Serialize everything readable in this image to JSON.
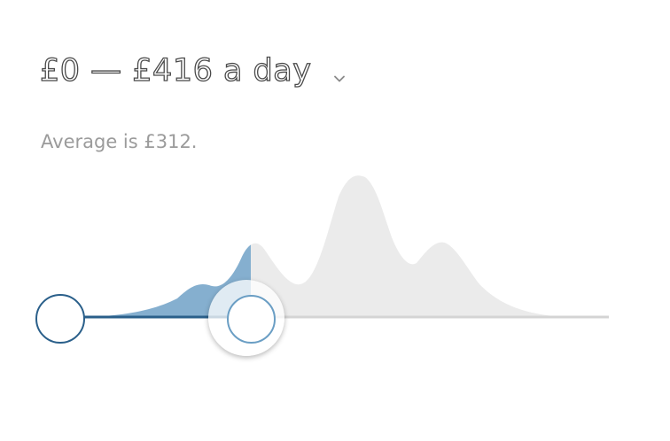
{
  "filter": {
    "title": "£0 — £416 a day",
    "average_text": "Average is £312.",
    "dropdown_icon": "chevron-down-icon"
  },
  "slider": {
    "min_value": 0,
    "max_value": 416,
    "currency": "£",
    "unit": "a day",
    "selected_fraction_end": 0.37
  },
  "colors": {
    "selected_fill": "#6a9ec4",
    "unselected_fill": "#ebebeb",
    "track_active": "#2a5f8a",
    "track_inactive": "#d4d4d4"
  }
}
